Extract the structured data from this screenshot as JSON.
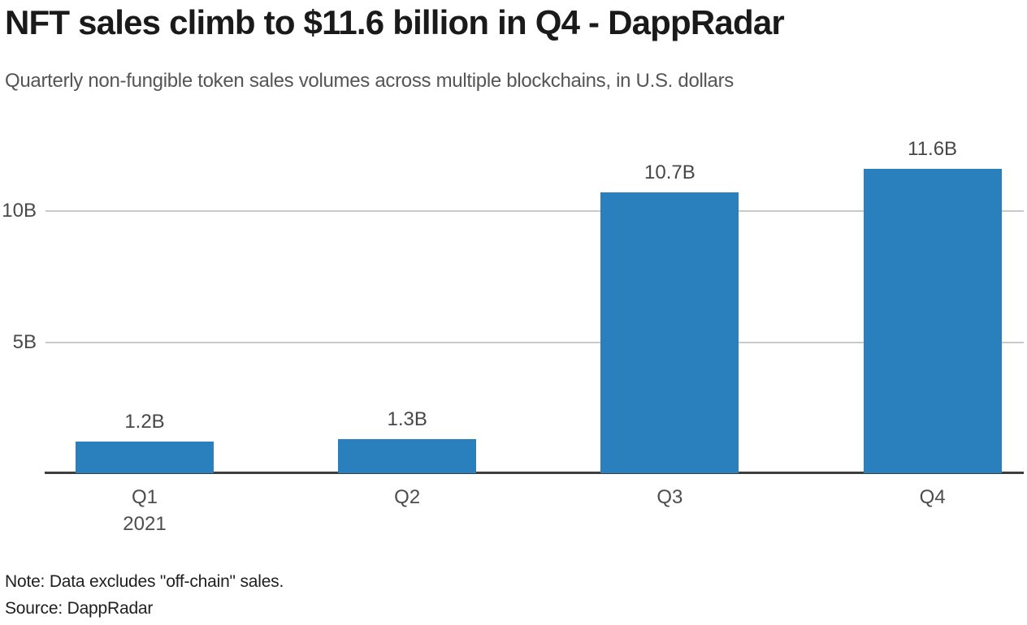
{
  "header": {
    "title": "NFT sales climb to $11.6 billion in Q4 - DappRadar",
    "subtitle": "Quarterly non-fungible token sales volumes across multiple blockchains, in U.S. dollars"
  },
  "chart_data": {
    "type": "bar",
    "title": "NFT sales climb to $11.6 billion in Q4 - DappRadar",
    "subtitle": "Quarterly non-fungible token sales volumes across multiple blockchains, in U.S. dollars",
    "categories": [
      "Q1",
      "Q2",
      "Q3",
      "Q4"
    ],
    "x_sub_labels": [
      "2021",
      "",
      "",
      ""
    ],
    "values": [
      1.2,
      1.3,
      10.7,
      11.6
    ],
    "value_labels": [
      "1.2B",
      "1.3B",
      "10.7B",
      "11.6B"
    ],
    "unit": "billion USD",
    "xlabel": "",
    "ylabel": "",
    "ylim": [
      0,
      13.2
    ],
    "y_ticks": [
      {
        "value": 5,
        "label": "5B"
      },
      {
        "value": 10,
        "label": "10B"
      }
    ],
    "grid": true,
    "legend": false,
    "bar_color": "#2a80bd"
  },
  "footer": {
    "note": "Note: Data excludes \"off-chain\" sales.",
    "source": "Source: DappRadar"
  },
  "colors": {
    "bar": "#2a80bd",
    "gridline": "#c9c9c9",
    "axis": "#3d3d3d",
    "title_text": "#1a1a1a",
    "subtitle_text": "#555555",
    "tick_text": "#4a4a4a",
    "background": "#ffffff"
  }
}
